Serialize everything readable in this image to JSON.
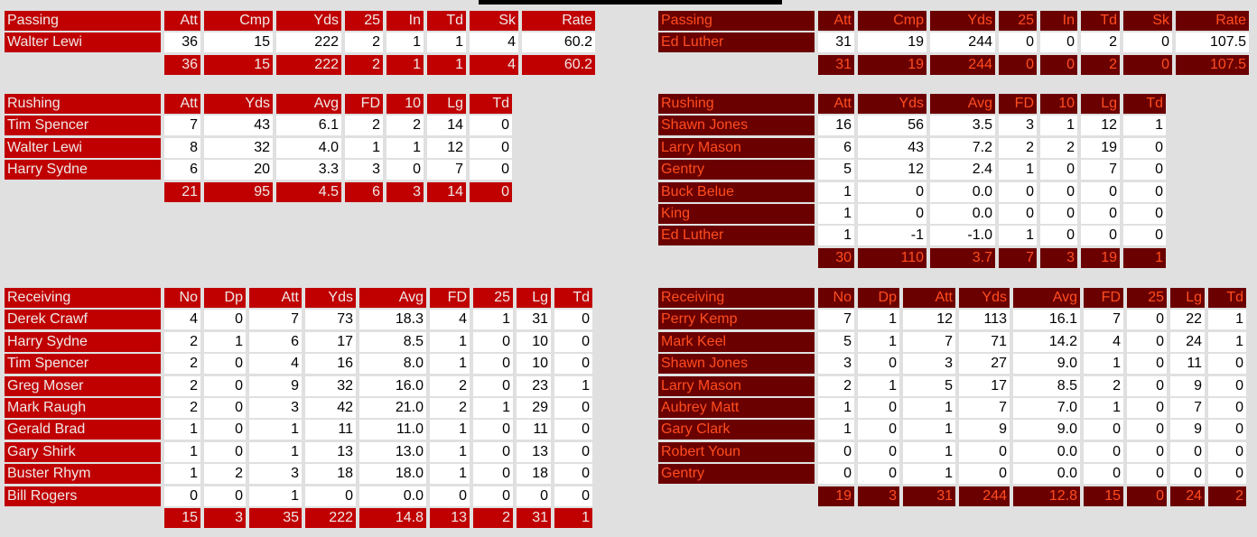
{
  "colors": {
    "home_header": "#c00000",
    "away_header": "#6b0000",
    "away_text": "#ff4d1f",
    "background": "#e0e0e0"
  },
  "home": {
    "passing": {
      "headers": [
        "Passing",
        "Att",
        "Cmp",
        "Yds",
        "25",
        "In",
        "Td",
        "Sk",
        "Rate"
      ],
      "rows": [
        [
          "Walter Lewi",
          "36",
          "15",
          "222",
          "2",
          "1",
          "1",
          "4",
          "60.2"
        ]
      ],
      "totals": [
        "36",
        "15",
        "222",
        "2",
        "1",
        "1",
        "4",
        "60.2"
      ]
    },
    "rushing": {
      "headers": [
        "Rushing",
        "Att",
        "Yds",
        "Avg",
        "FD",
        "10",
        "Lg",
        "Td"
      ],
      "rows": [
        [
          "Tim Spencer",
          "7",
          "43",
          "6.1",
          "2",
          "2",
          "14",
          "0"
        ],
        [
          "Walter Lewi",
          "8",
          "32",
          "4.0",
          "1",
          "1",
          "12",
          "0"
        ],
        [
          "Harry Sydne",
          "6",
          "20",
          "3.3",
          "3",
          "0",
          "7",
          "0"
        ]
      ],
      "totals": [
        "21",
        "95",
        "4.5",
        "6",
        "3",
        "14",
        "0"
      ]
    },
    "receiving": {
      "headers": [
        "Receiving",
        "No",
        "Dp",
        "Att",
        "Yds",
        "Avg",
        "FD",
        "25",
        "Lg",
        "Td"
      ],
      "rows": [
        [
          "Derek Crawf",
          "4",
          "0",
          "7",
          "73",
          "18.3",
          "4",
          "1",
          "31",
          "0"
        ],
        [
          "Harry Sydne",
          "2",
          "1",
          "6",
          "17",
          "8.5",
          "1",
          "0",
          "10",
          "0"
        ],
        [
          "Tim Spencer",
          "2",
          "0",
          "4",
          "16",
          "8.0",
          "1",
          "0",
          "10",
          "0"
        ],
        [
          "Greg Moser",
          "2",
          "0",
          "9",
          "32",
          "16.0",
          "2",
          "0",
          "23",
          "1"
        ],
        [
          "Mark Raugh",
          "2",
          "0",
          "3",
          "42",
          "21.0",
          "2",
          "1",
          "29",
          "0"
        ],
        [
          "Gerald Brad",
          "1",
          "0",
          "1",
          "11",
          "11.0",
          "1",
          "0",
          "11",
          "0"
        ],
        [
          "Gary Shirk",
          "1",
          "0",
          "1",
          "13",
          "13.0",
          "1",
          "0",
          "13",
          "0"
        ],
        [
          "Buster Rhym",
          "1",
          "2",
          "3",
          "18",
          "18.0",
          "1",
          "0",
          "18",
          "0"
        ],
        [
          "Bill Rogers",
          "0",
          "0",
          "1",
          "0",
          "0.0",
          "0",
          "0",
          "0",
          "0"
        ]
      ],
      "totals": [
        "15",
        "3",
        "35",
        "222",
        "14.8",
        "13",
        "2",
        "31",
        "1"
      ]
    }
  },
  "away": {
    "passing": {
      "headers": [
        "Passing",
        "Att",
        "Cmp",
        "Yds",
        "25",
        "In",
        "Td",
        "Sk",
        "Rate"
      ],
      "rows": [
        [
          "Ed Luther",
          "31",
          "19",
          "244",
          "0",
          "0",
          "2",
          "0",
          "107.5"
        ]
      ],
      "totals": [
        "31",
        "19",
        "244",
        "0",
        "0",
        "2",
        "0",
        "107.5"
      ]
    },
    "rushing": {
      "headers": [
        "Rushing",
        "Att",
        "Yds",
        "Avg",
        "FD",
        "10",
        "Lg",
        "Td"
      ],
      "rows": [
        [
          "Shawn Jones",
          "16",
          "56",
          "3.5",
          "3",
          "1",
          "12",
          "1"
        ],
        [
          "Larry Mason",
          "6",
          "43",
          "7.2",
          "2",
          "2",
          "19",
          "0"
        ],
        [
          "Gentry",
          "5",
          "12",
          "2.4",
          "1",
          "0",
          "7",
          "0"
        ],
        [
          "Buck Belue",
          "1",
          "0",
          "0.0",
          "0",
          "0",
          "0",
          "0"
        ],
        [
          "King",
          "1",
          "0",
          "0.0",
          "0",
          "0",
          "0",
          "0"
        ],
        [
          "Ed Luther",
          "1",
          "-1",
          "-1.0",
          "1",
          "0",
          "0",
          "0"
        ]
      ],
      "totals": [
        "30",
        "110",
        "3.7",
        "7",
        "3",
        "19",
        "1"
      ]
    },
    "receiving": {
      "headers": [
        "Receiving",
        "No",
        "Dp",
        "Att",
        "Yds",
        "Avg",
        "FD",
        "25",
        "Lg",
        "Td"
      ],
      "rows": [
        [
          "Perry Kemp",
          "7",
          "1",
          "12",
          "113",
          "16.1",
          "7",
          "0",
          "22",
          "1"
        ],
        [
          "Mark Keel",
          "5",
          "1",
          "7",
          "71",
          "14.2",
          "4",
          "0",
          "24",
          "1"
        ],
        [
          "Shawn Jones",
          "3",
          "0",
          "3",
          "27",
          "9.0",
          "1",
          "0",
          "11",
          "0"
        ],
        [
          "Larry Mason",
          "2",
          "1",
          "5",
          "17",
          "8.5",
          "2",
          "0",
          "9",
          "0"
        ],
        [
          "Aubrey Matt",
          "1",
          "0",
          "1",
          "7",
          "7.0",
          "1",
          "0",
          "7",
          "0"
        ],
        [
          "Gary Clark",
          "1",
          "0",
          "1",
          "9",
          "9.0",
          "0",
          "0",
          "9",
          "0"
        ],
        [
          "Robert Youn",
          "0",
          "0",
          "1",
          "0",
          "0.0",
          "0",
          "0",
          "0",
          "0"
        ],
        [
          "Gentry",
          "0",
          "0",
          "1",
          "0",
          "0.0",
          "0",
          "0",
          "0",
          "0"
        ]
      ],
      "totals": [
        "19",
        "3",
        "31",
        "244",
        "12.8",
        "15",
        "0",
        "24",
        "2"
      ]
    }
  }
}
